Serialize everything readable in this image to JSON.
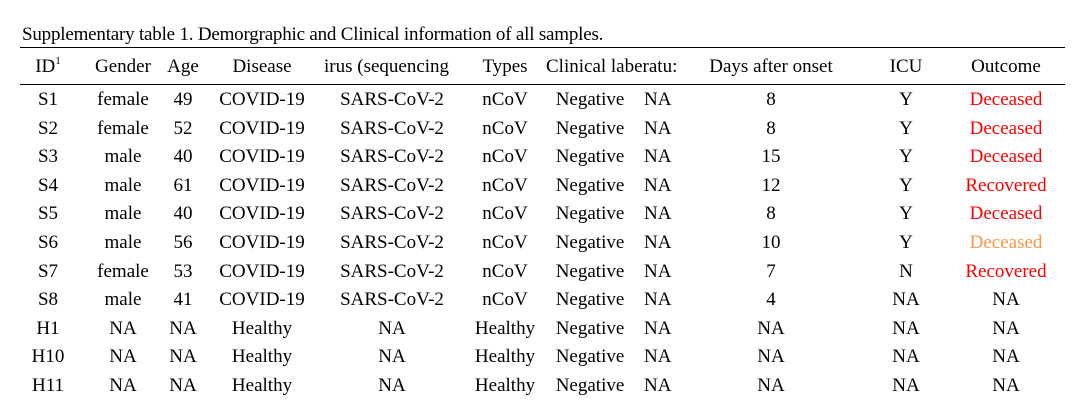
{
  "caption": "Supplementary table 1. Demorgraphic and Clinical information of all samples.",
  "headers": {
    "id": "ID",
    "id_sup": "1",
    "gender": "Gender",
    "age": "Age",
    "disease": "Disease",
    "virus": "irus (sequencing",
    "types": "Types",
    "clinical": "Clinical laberatu:",
    "days": "Days after onset",
    "icu": "ICU",
    "outcome": "Outcome"
  },
  "colors": {
    "text": "#000000",
    "deceased": "#ff0000",
    "recovered": "#ff0000",
    "deceased_orange": "#f79646"
  },
  "rows": [
    {
      "id": "S1",
      "gender": "female",
      "age": "49",
      "disease": "COVID-19",
      "virus": "SARS-CoV-2",
      "types": "nCoV",
      "clinical": "Negative",
      "lab": "NA",
      "days": "8",
      "icu": "Y",
      "outcome": "Deceased",
      "outcome_color": "#ff0000"
    },
    {
      "id": "S2",
      "gender": "female",
      "age": "52",
      "disease": "COVID-19",
      "virus": "SARS-CoV-2",
      "types": "nCoV",
      "clinical": "Negative",
      "lab": "NA",
      "days": "8",
      "icu": "Y",
      "outcome": "Deceased",
      "outcome_color": "#ff0000"
    },
    {
      "id": "S3",
      "gender": "male",
      "age": "40",
      "disease": "COVID-19",
      "virus": "SARS-CoV-2",
      "types": "nCoV",
      "clinical": "Negative",
      "lab": "NA",
      "days": "15",
      "icu": "Y",
      "outcome": "Deceased",
      "outcome_color": "#ff0000"
    },
    {
      "id": "S4",
      "gender": "male",
      "age": "61",
      "disease": "COVID-19",
      "virus": "SARS-CoV-2",
      "types": "nCoV",
      "clinical": "Negative",
      "lab": "NA",
      "days": "12",
      "icu": "Y",
      "outcome": "Recovered",
      "outcome_color": "#ff0000"
    },
    {
      "id": "S5",
      "gender": "male",
      "age": "40",
      "disease": "COVID-19",
      "virus": "SARS-CoV-2",
      "types": "nCoV",
      "clinical": "Negative",
      "lab": "NA",
      "days": "8",
      "icu": "Y",
      "outcome": "Deceased",
      "outcome_color": "#ff0000"
    },
    {
      "id": "S6",
      "gender": "male",
      "age": "56",
      "disease": "COVID-19",
      "virus": "SARS-CoV-2",
      "types": "nCoV",
      "clinical": "Negative",
      "lab": "NA",
      "days": "10",
      "icu": "Y",
      "outcome": "Deceased",
      "outcome_color": "#f79646"
    },
    {
      "id": "S7",
      "gender": "female",
      "age": "53",
      "disease": "COVID-19",
      "virus": "SARS-CoV-2",
      "types": "nCoV",
      "clinical": "Negative",
      "lab": "NA",
      "days": "7",
      "icu": "N",
      "outcome": "Recovered",
      "outcome_color": "#ff0000"
    },
    {
      "id": "S8",
      "gender": "male",
      "age": "41",
      "disease": "COVID-19",
      "virus": "SARS-CoV-2",
      "types": "nCoV",
      "clinical": "Negative",
      "lab": "NA",
      "days": "4",
      "icu": "NA",
      "outcome": "NA",
      "outcome_color": "#000000"
    },
    {
      "id": "H1",
      "gender": "NA",
      "age": "NA",
      "disease": "Healthy",
      "virus": "NA",
      "types": "Healthy",
      "clinical": "Negative",
      "lab": "NA",
      "days": "NA",
      "icu": "NA",
      "outcome": "NA",
      "outcome_color": "#000000"
    },
    {
      "id": "H10",
      "gender": "NA",
      "age": "NA",
      "disease": "Healthy",
      "virus": "NA",
      "types": "Healthy",
      "clinical": "Negative",
      "lab": "NA",
      "days": "NA",
      "icu": "NA",
      "outcome": "NA",
      "outcome_color": "#000000"
    },
    {
      "id": "H11",
      "gender": "NA",
      "age": "NA",
      "disease": "Healthy",
      "virus": "NA",
      "types": "Healthy",
      "clinical": "Negative",
      "lab": "NA",
      "days": "NA",
      "icu": "NA",
      "outcome": "NA",
      "outcome_color": "#000000"
    }
  ]
}
